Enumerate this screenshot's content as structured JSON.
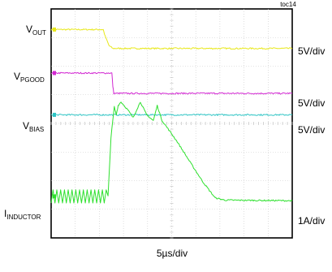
{
  "figure_id": "toc14",
  "x_scale_label": "5µs/div",
  "traces": [
    {
      "key": "vout",
      "name": "V",
      "sub": "OUT",
      "scale": "5V/div",
      "color": "#e8e81a"
    },
    {
      "key": "vpg",
      "name": "V",
      "sub": "PGOOD",
      "scale": "5V/div",
      "color": "#d228d2"
    },
    {
      "key": "vbias",
      "name": "V",
      "sub": "BIAS",
      "scale": "5V/div",
      "color": "#2ec4c4"
    },
    {
      "key": "iind",
      "name": "I",
      "sub": "INDUCTOR",
      "scale": "1A/div",
      "color": "#2ee02e"
    }
  ],
  "chart_data": {
    "type": "line",
    "x_unit": "µs",
    "xlim": [
      0,
      50
    ],
    "ylim": [
      -4,
      4
    ],
    "grid": true,
    "series": [
      {
        "key": "vout",
        "points": [
          [
            0,
            3.28
          ],
          [
            10.8,
            3.28
          ],
          [
            11.2,
            3.05
          ],
          [
            12.0,
            2.72
          ],
          [
            12.8,
            2.62
          ],
          [
            50,
            2.62
          ]
        ]
      },
      {
        "key": "vpg",
        "points": [
          [
            0,
            1.76
          ],
          [
            12.6,
            1.76
          ],
          [
            12.8,
            1.3
          ],
          [
            13.0,
            1.05
          ],
          [
            50,
            1.05
          ]
        ]
      },
      {
        "key": "vbias",
        "points": [
          [
            0,
            0.3
          ],
          [
            50,
            0.3
          ]
        ]
      },
      {
        "key": "iind",
        "ripple": {
          "x_start": 0,
          "x_end": 11.8,
          "low": -2.78,
          "high": -2.32,
          "cycles": 15
        },
        "points": [
          [
            11.8,
            -2.55
          ],
          [
            12.4,
            -0.5
          ],
          [
            13.1,
            0.58
          ],
          [
            13.5,
            0.3
          ],
          [
            13.9,
            0.63
          ],
          [
            14.5,
            0.75
          ],
          [
            16.0,
            0.45
          ],
          [
            17.0,
            0.2
          ],
          [
            17.8,
            0.5
          ],
          [
            18.5,
            0.75
          ],
          [
            19.8,
            0.3
          ],
          [
            21.2,
            0.1
          ],
          [
            22.0,
            0.62
          ],
          [
            23.0,
            0.1
          ],
          [
            26.0,
            -0.6
          ],
          [
            29.0,
            -1.4
          ],
          [
            31.5,
            -2.05
          ],
          [
            33.0,
            -2.38
          ],
          [
            34.0,
            -2.6
          ],
          [
            36.0,
            -2.68
          ],
          [
            50,
            -2.7
          ]
        ]
      }
    ]
  }
}
